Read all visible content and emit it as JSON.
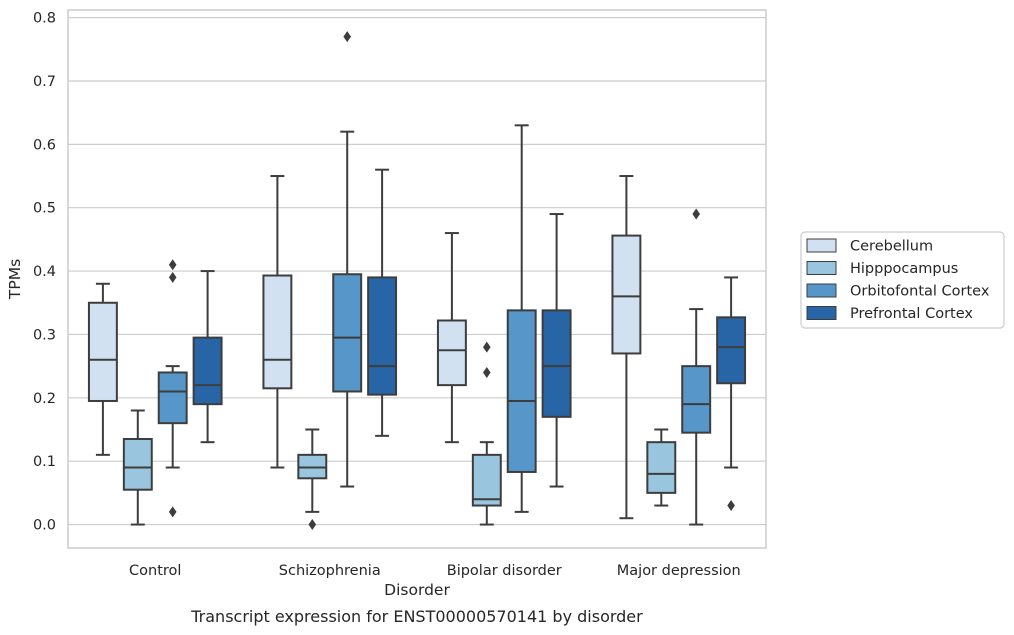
{
  "chart_data": {
    "type": "box",
    "caption": "Transcript expression for ENST00000570141 by disorder",
    "xlabel": "Disorder",
    "ylabel": "TPMs",
    "ylim": [
      -0.037,
      0.812
    ],
    "yticks": [
      0.0,
      0.1,
      0.2,
      0.3,
      0.4,
      0.5,
      0.6,
      0.7,
      0.8
    ],
    "ytick_labels": [
      "0.0",
      "0.1",
      "0.2",
      "0.3",
      "0.4",
      "0.5",
      "0.6",
      "0.7",
      "0.8"
    ],
    "grid": "horizontal",
    "legend_position": "outside-right",
    "categories": [
      "Control",
      "Schizophrenia",
      "Bipolar disorder",
      "Major depression"
    ],
    "series": [
      {
        "name": "Cerebellum",
        "color": "#d2e1f2",
        "boxes": [
          {
            "whislo": 0.11,
            "q1": 0.195,
            "med": 0.26,
            "q3": 0.35,
            "whishi": 0.38,
            "fliers": []
          },
          {
            "whislo": 0.09,
            "q1": 0.215,
            "med": 0.26,
            "q3": 0.393,
            "whishi": 0.55,
            "fliers": []
          },
          {
            "whislo": 0.13,
            "q1": 0.22,
            "med": 0.275,
            "q3": 0.322,
            "whishi": 0.46,
            "fliers": []
          },
          {
            "whislo": 0.01,
            "q1": 0.27,
            "med": 0.36,
            "q3": 0.456,
            "whishi": 0.55,
            "fliers": []
          }
        ]
      },
      {
        "name": "Hipppocampus",
        "color": "#9ac5de",
        "boxes": [
          {
            "whislo": 0.0,
            "q1": 0.055,
            "med": 0.09,
            "q3": 0.135,
            "whishi": 0.18,
            "fliers": []
          },
          {
            "whislo": 0.02,
            "q1": 0.073,
            "med": 0.09,
            "q3": 0.11,
            "whishi": 0.15,
            "fliers": [
              0.0
            ]
          },
          {
            "whislo": 0.0,
            "q1": 0.03,
            "med": 0.04,
            "q3": 0.11,
            "whishi": 0.13,
            "fliers": [
              0.24,
              0.28
            ]
          },
          {
            "whislo": 0.03,
            "q1": 0.05,
            "med": 0.08,
            "q3": 0.13,
            "whishi": 0.15,
            "fliers": []
          }
        ]
      },
      {
        "name": "Orbitofontal Cortex",
        "color": "#5696c8",
        "boxes": [
          {
            "whislo": 0.09,
            "q1": 0.16,
            "med": 0.21,
            "q3": 0.24,
            "whishi": 0.25,
            "fliers": [
              0.02,
              0.39,
              0.41
            ]
          },
          {
            "whislo": 0.06,
            "q1": 0.21,
            "med": 0.295,
            "q3": 0.395,
            "whishi": 0.62,
            "fliers": [
              0.77
            ]
          },
          {
            "whislo": 0.02,
            "q1": 0.083,
            "med": 0.195,
            "q3": 0.338,
            "whishi": 0.63,
            "fliers": []
          },
          {
            "whislo": 0.0,
            "q1": 0.145,
            "med": 0.19,
            "q3": 0.25,
            "whishi": 0.34,
            "fliers": [
              0.49
            ]
          }
        ]
      },
      {
        "name": "Prefrontal Cortex",
        "color": "#2865a6",
        "boxes": [
          {
            "whislo": 0.13,
            "q1": 0.19,
            "med": 0.22,
            "q3": 0.295,
            "whishi": 0.4,
            "fliers": []
          },
          {
            "whislo": 0.14,
            "q1": 0.205,
            "med": 0.25,
            "q3": 0.39,
            "whishi": 0.56,
            "fliers": []
          },
          {
            "whislo": 0.06,
            "q1": 0.17,
            "med": 0.25,
            "q3": 0.338,
            "whishi": 0.49,
            "fliers": []
          },
          {
            "whislo": 0.09,
            "q1": 0.223,
            "med": 0.28,
            "q3": 0.327,
            "whishi": 0.39,
            "fliers": [
              0.03
            ]
          }
        ]
      }
    ]
  }
}
